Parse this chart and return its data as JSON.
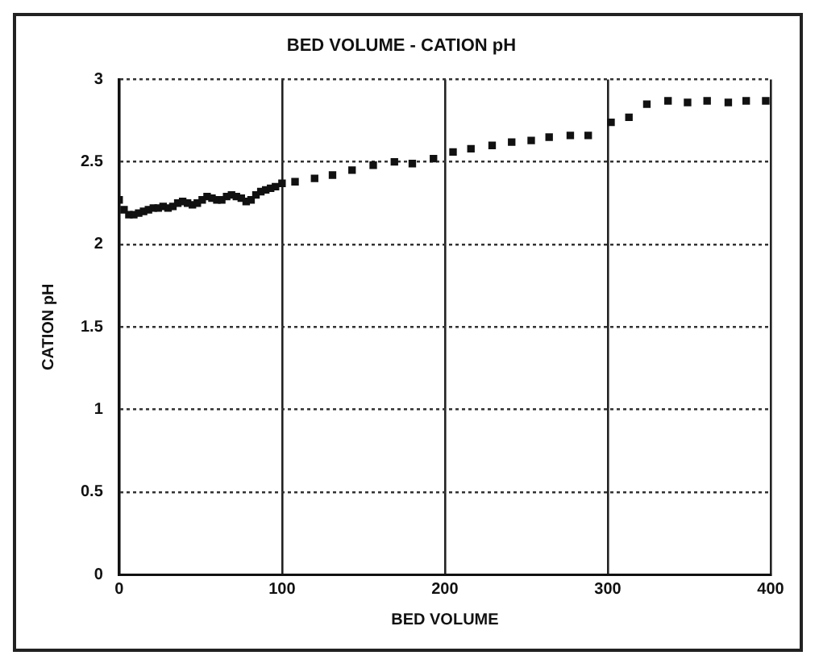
{
  "chart_data": {
    "type": "scatter",
    "title": "BED VOLUME - CATION pH",
    "xlabel": "BED VOLUME",
    "ylabel": "CATION pH",
    "x": [
      0,
      3,
      6,
      9,
      12,
      15,
      18,
      21,
      24,
      27,
      30,
      33,
      36,
      39,
      42,
      45,
      48,
      51,
      54,
      57,
      60,
      63,
      66,
      69,
      72,
      75,
      78,
      81,
      84,
      87,
      90,
      93,
      96,
      100,
      108,
      120,
      131,
      143,
      156,
      169,
      180,
      193,
      205,
      216,
      229,
      241,
      253,
      264,
      277,
      288,
      302,
      313,
      324,
      337,
      349,
      361,
      374,
      385,
      397
    ],
    "values": [
      2.27,
      2.21,
      2.18,
      2.18,
      2.19,
      2.2,
      2.21,
      2.22,
      2.22,
      2.23,
      2.22,
      2.23,
      2.25,
      2.26,
      2.25,
      2.24,
      2.25,
      2.27,
      2.29,
      2.28,
      2.27,
      2.27,
      2.29,
      2.3,
      2.29,
      2.28,
      2.26,
      2.27,
      2.3,
      2.32,
      2.33,
      2.34,
      2.35,
      2.37,
      2.38,
      2.4,
      2.42,
      2.45,
      2.48,
      2.5,
      2.49,
      2.52,
      2.56,
      2.58,
      2.6,
      2.62,
      2.63,
      2.65,
      2.66,
      2.66,
      2.74,
      2.77,
      2.85,
      2.87,
      2.86,
      2.87,
      2.86,
      2.87,
      2.87
    ],
    "color": "#111111",
    "marker": "square",
    "xlim": [
      0,
      400
    ],
    "xticks": [
      0,
      100,
      200,
      300,
      400
    ],
    "ylim": [
      0,
      3
    ],
    "yticks": [
      0,
      0.5,
      1,
      1.5,
      2,
      2.5,
      3
    ],
    "grid": true,
    "legend": false
  }
}
